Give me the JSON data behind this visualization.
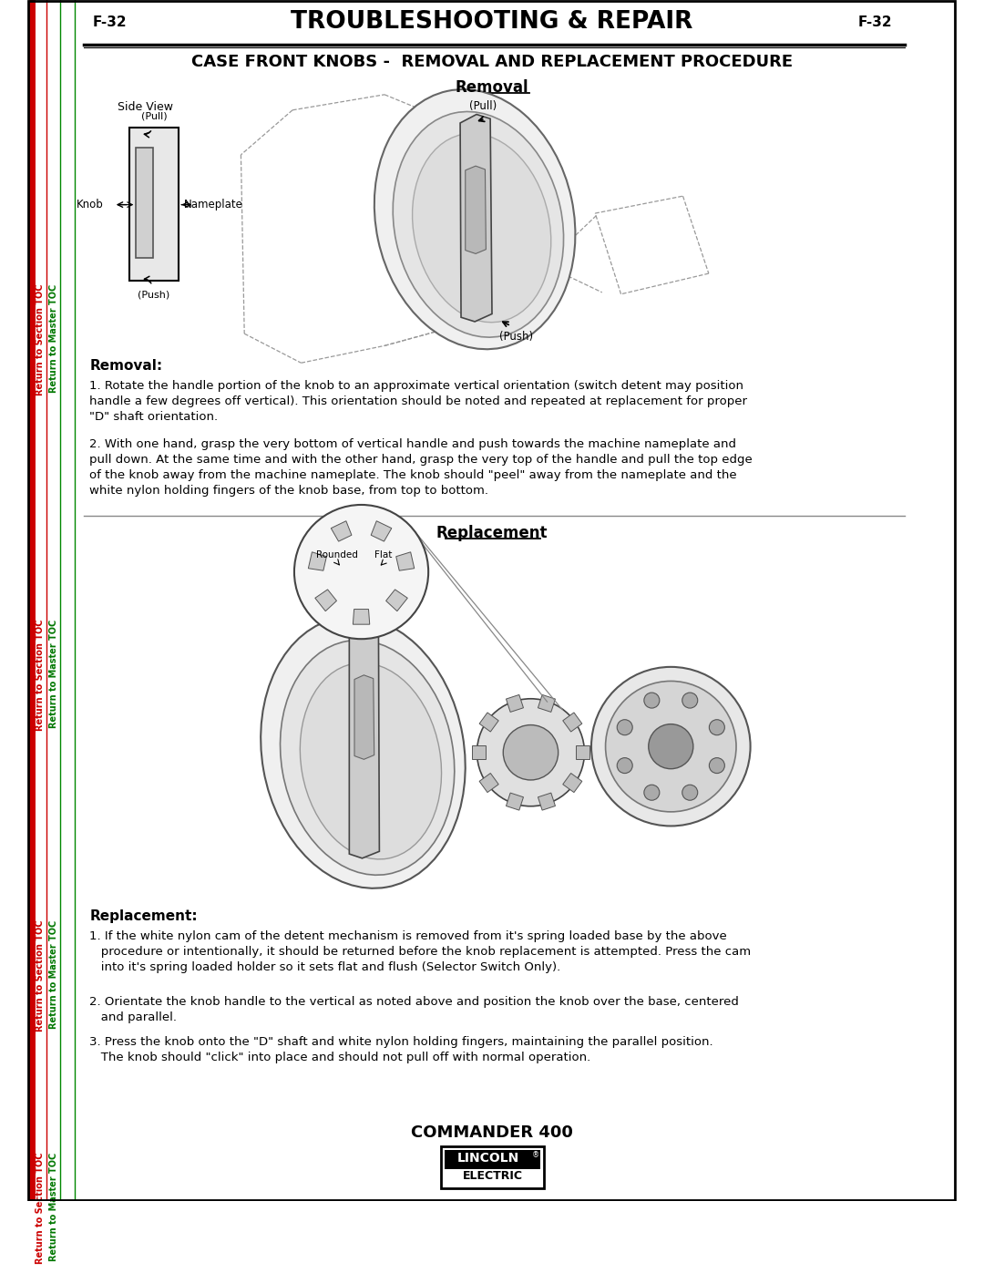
{
  "page_label_left": "F-32",
  "page_label_right": "F-32",
  "header_title": "TROUBLESHOOTING & REPAIR",
  "section_title": "CASE FRONT KNOBS -  REMOVAL AND REPLACEMENT PROCEDURE",
  "removal_title": "Removal",
  "replacement_title": "Replacement",
  "removal_subtitle": "Removal:",
  "replacement_subtitle": "Replacement:",
  "removal_text_1": "1. Rotate the handle portion of the knob to an approximate vertical orientation (switch detent may position\nhandle a few degrees off vertical). This orientation should be noted and repeated at replacement for proper\n\"D\" shaft orientation.",
  "removal_text_2": "2. With one hand, grasp the very bottom of vertical handle and push towards the machine nameplate and\npull down. At the same time and with the other hand, grasp the very top of the handle and pull the top edge\nof the knob away from the machine nameplate. The knob should \"peel\" away from the nameplate and the\nwhite nylon holding fingers of the knob base, from top to bottom.",
  "replacement_text_1": "1. If the white nylon cam of the detent mechanism is removed from it's spring loaded base by the above\n   procedure or intentionally, it should be returned before the knob replacement is attempted. Press the cam\n   into it's spring loaded holder so it sets flat and flush (Selector Switch Only).",
  "replacement_text_2": "2. Orientate the knob handle to the vertical as noted above and position the knob over the base, centered\n   and parallel.",
  "replacement_text_3": "3. Press the knob onto the \"D\" shaft and white nylon holding fingers, maintaining the parallel position.\n   The knob should \"click\" into place and should not pull off with normal operation.",
  "footer_model": "COMMANDER 400",
  "sidebar_left_red": "Return to Section TOC",
  "sidebar_left_green": "Return to Master TOC",
  "bg_color": "#ffffff",
  "border_color": "#000000",
  "red_color": "#cc0000",
  "green_color": "#007700",
  "text_color": "#000000"
}
